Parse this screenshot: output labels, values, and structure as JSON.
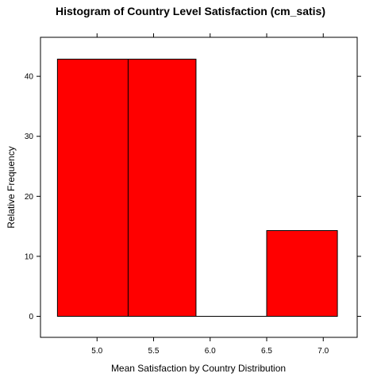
{
  "chart_data": {
    "type": "bar",
    "title": "Histogram of Country Level Satisfaction (cm_satis)",
    "xlabel": "Mean Satisfaction by Country Distribution",
    "ylabel": "Relative Frequency",
    "bins": [
      {
        "x0": 4.65,
        "x1": 5.275,
        "value": 42.86
      },
      {
        "x0": 5.275,
        "x1": 5.875,
        "value": 42.86
      },
      {
        "x0": 5.875,
        "x1": 6.5,
        "value": 0
      },
      {
        "x0": 6.5,
        "x1": 7.125,
        "value": 14.29
      }
    ],
    "xlim": [
      4.5,
      7.3
    ],
    "ylim": [
      -3.5,
      46.5
    ],
    "xticks": [
      5.0,
      5.5,
      6.0,
      6.5,
      7.0
    ],
    "xtick_labels": [
      "5.0",
      "5.5",
      "6.0",
      "6.5",
      "7.0"
    ],
    "yticks": [
      0,
      10,
      20,
      30,
      40
    ],
    "ytick_labels": [
      "0",
      "10",
      "20",
      "30",
      "40"
    ],
    "bar_color": "#ff0000",
    "grid": false,
    "legend": "none"
  }
}
